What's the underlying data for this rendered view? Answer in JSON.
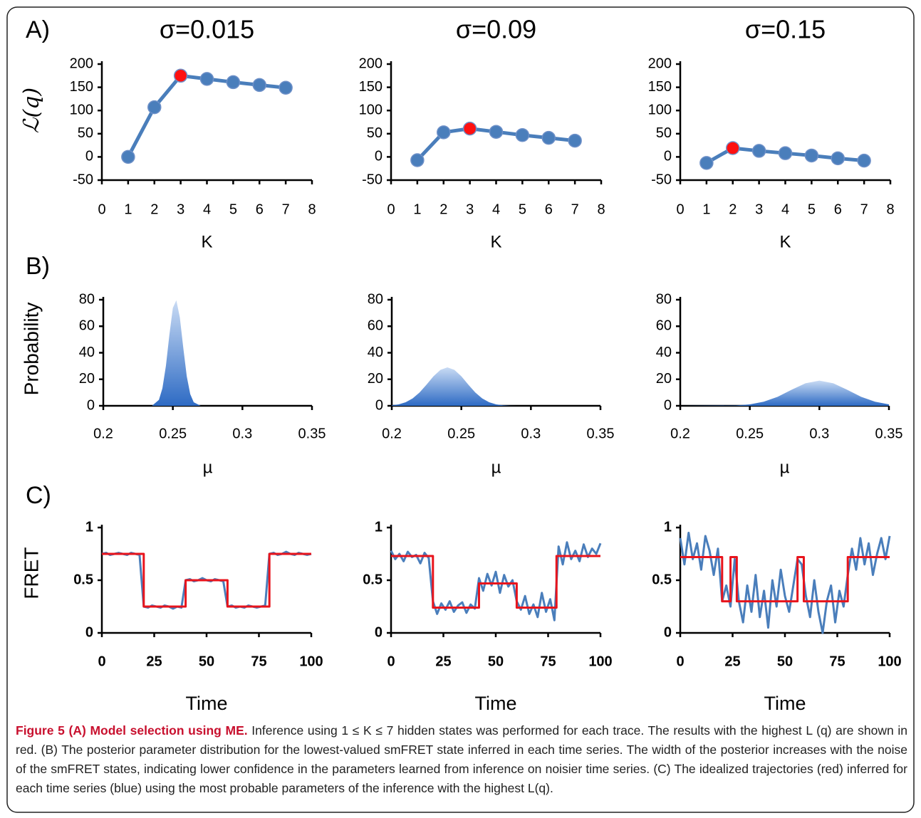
{
  "panel_labels": [
    "A)",
    "B)",
    "C)"
  ],
  "caption": {
    "bold": "Figure 5 (A) Model selection using ME.",
    "text": "Inference using 1 ≤ K ≤ 7 hidden states was performed for each trace. The results with the highest L (q) are shown in red. (B) The posterior parameter distribution for the lowest-valued smFRET state inferred in each time series. The width of the posterior increases with the noise of the smFRET states, indicating lower confidence in the parameters learned from inference on noisier time series. (C) The idealized trajectories (red) inferred for each time series (blue) using the most probable parameters of the inference with the highest L(q)."
  },
  "chart_data": [
    {
      "type": "line",
      "title": "σ=0.015",
      "ylabel": "ℒ(q)",
      "xlabel": "K",
      "markers": true,
      "color": "#4a7ebb",
      "x": [
        1,
        2,
        3,
        4,
        5,
        6,
        7
      ],
      "values": [
        0,
        107,
        175,
        168,
        161,
        155,
        149
      ],
      "point_colors": [
        "#4a7ebb",
        "#4a7ebb",
        "#ff1010",
        "#4a7ebb",
        "#4a7ebb",
        "#4a7ebb",
        "#4a7ebb"
      ],
      "xlim": [
        0,
        8
      ],
      "xticks": [
        0,
        1,
        2,
        3,
        4,
        5,
        6,
        7,
        8
      ],
      "ylim": [
        -50,
        200
      ],
      "yticks": [
        -50,
        0,
        50,
        100,
        150,
        200
      ]
    },
    {
      "type": "line",
      "title": "σ=0.09",
      "xlabel": "K",
      "markers": true,
      "color": "#4a7ebb",
      "x": [
        1,
        2,
        3,
        4,
        5,
        6,
        7
      ],
      "values": [
        -7,
        53,
        61,
        54,
        47,
        41,
        35
      ],
      "point_colors": [
        "#4a7ebb",
        "#4a7ebb",
        "#ff1010",
        "#4a7ebb",
        "#4a7ebb",
        "#4a7ebb",
        "#4a7ebb"
      ],
      "xlim": [
        0,
        8
      ],
      "xticks": [
        0,
        1,
        2,
        3,
        4,
        5,
        6,
        7,
        8
      ],
      "ylim": [
        -50,
        200
      ],
      "yticks": [
        -50,
        0,
        50,
        100,
        150,
        200
      ]
    },
    {
      "type": "line",
      "title": "σ=0.15",
      "xlabel": "K",
      "markers": true,
      "color": "#4a7ebb",
      "x": [
        1,
        2,
        3,
        4,
        5,
        6,
        7
      ],
      "values": [
        -13,
        19,
        13,
        8,
        3,
        -3,
        -8
      ],
      "point_colors": [
        "#4a7ebb",
        "#ff1010",
        "#4a7ebb",
        "#4a7ebb",
        "#4a7ebb",
        "#4a7ebb",
        "#4a7ebb"
      ],
      "xlim": [
        0,
        8
      ],
      "xticks": [
        0,
        1,
        2,
        3,
        4,
        5,
        6,
        7,
        8
      ],
      "ylim": [
        -50,
        200
      ],
      "yticks": [
        -50,
        0,
        50,
        100,
        150,
        200
      ]
    },
    {
      "type": "area",
      "ylabel": "Probability",
      "xlabel": "µ",
      "color": "#2e6bc4",
      "x": [
        0.2,
        0.235,
        0.24,
        0.2425,
        0.245,
        0.2475,
        0.25,
        0.2525,
        0.255,
        0.2575,
        0.26,
        0.2625,
        0.265,
        0.27,
        0.35
      ],
      "values": [
        0,
        0,
        4.5,
        13.2,
        30,
        53.4,
        73.8,
        79.6,
        66.8,
        43.7,
        22.2,
        8.8,
        2.7,
        0,
        0
      ],
      "xlim": [
        0.2,
        0.35
      ],
      "xticks": [
        0.2,
        0.25,
        0.3,
        0.35
      ],
      "ylim": [
        0,
        80
      ],
      "yticks": [
        0,
        20,
        40,
        60,
        80
      ]
    },
    {
      "type": "area",
      "xlabel": "µ",
      "color": "#2e6bc4",
      "x": [
        0.2,
        0.205,
        0.21,
        0.215,
        0.22,
        0.225,
        0.23,
        0.235,
        0.24,
        0.245,
        0.25,
        0.255,
        0.26,
        0.265,
        0.27,
        0.275,
        0.28,
        0.285,
        0.29,
        0.35
      ],
      "values": [
        0.4,
        1.1,
        2.7,
        5.6,
        10.1,
        16,
        22.3,
        27.1,
        29,
        27.1,
        22.3,
        16,
        10.1,
        5.6,
        2.7,
        1.1,
        0.4,
        0.1,
        0,
        0
      ],
      "xlim": [
        0.2,
        0.35
      ],
      "xticks": [
        0.2,
        0.25,
        0.3,
        0.35
      ],
      "ylim": [
        0,
        80
      ],
      "yticks": [
        0,
        20,
        40,
        60,
        80
      ]
    },
    {
      "type": "area",
      "xlabel": "µ",
      "color": "#2e6bc4",
      "x": [
        0.2,
        0.24,
        0.25,
        0.26,
        0.27,
        0.28,
        0.29,
        0.3,
        0.31,
        0.32,
        0.33,
        0.34,
        0.35
      ],
      "values": [
        0,
        0.3,
        1.1,
        3.1,
        6.8,
        12.1,
        17,
        19,
        17,
        12.1,
        6.8,
        3.1,
        1.1
      ],
      "xlim": [
        0.2,
        0.35
      ],
      "xticks": [
        0.2,
        0.25,
        0.3,
        0.35
      ],
      "ylim": [
        0,
        80
      ],
      "yticks": [
        0,
        20,
        40,
        60,
        80
      ]
    },
    {
      "type": "line",
      "ylabel": "FRET",
      "xlabel": "Time",
      "series": [
        {
          "color": "#4a7ebb",
          "x": [
            0,
            2,
            4,
            6,
            8,
            10,
            12,
            14,
            16,
            18,
            20,
            22,
            24,
            26,
            28,
            30,
            32,
            34,
            36,
            38,
            40,
            42,
            44,
            46,
            48,
            50,
            52,
            54,
            56,
            58,
            60,
            62,
            64,
            66,
            68,
            70,
            72,
            74,
            76,
            78,
            80,
            82,
            84,
            86,
            88,
            90,
            92,
            94,
            96,
            98,
            100
          ],
          "values": [
            0.75,
            0.76,
            0.74,
            0.75,
            0.76,
            0.75,
            0.74,
            0.76,
            0.75,
            0.74,
            0.25,
            0.24,
            0.26,
            0.25,
            0.24,
            0.26,
            0.25,
            0.23,
            0.25,
            0.24,
            0.5,
            0.51,
            0.49,
            0.5,
            0.52,
            0.5,
            0.49,
            0.51,
            0.5,
            0.49,
            0.25,
            0.26,
            0.24,
            0.25,
            0.24,
            0.26,
            0.25,
            0.24,
            0.25,
            0.26,
            0.75,
            0.76,
            0.74,
            0.75,
            0.77,
            0.75,
            0.74,
            0.76,
            0.75,
            0.74,
            0.75
          ]
        },
        {
          "color": "#e8141c",
          "x": [
            0,
            20,
            20,
            40,
            40,
            60,
            60,
            80,
            80,
            100
          ],
          "values": [
            0.75,
            0.75,
            0.25,
            0.25,
            0.5,
            0.5,
            0.25,
            0.25,
            0.75,
            0.75
          ]
        }
      ],
      "xlim": [
        0,
        100
      ],
      "xticks": [
        0,
        25,
        50,
        75,
        100
      ],
      "ylim": [
        0,
        1
      ],
      "yticks": [
        0,
        0.5,
        1
      ]
    },
    {
      "type": "line",
      "xlabel": "Time",
      "series": [
        {
          "color": "#4a7ebb",
          "x": [
            0,
            2,
            4,
            6,
            8,
            10,
            12,
            14,
            16,
            18,
            20,
            22,
            24,
            26,
            28,
            30,
            32,
            34,
            36,
            38,
            40,
            42,
            44,
            46,
            48,
            50,
            52,
            54,
            56,
            58,
            60,
            62,
            64,
            66,
            68,
            70,
            72,
            74,
            76,
            78,
            80,
            82,
            84,
            86,
            88,
            90,
            92,
            94,
            96,
            98,
            100
          ],
          "values": [
            0.78,
            0.7,
            0.75,
            0.68,
            0.77,
            0.72,
            0.74,
            0.66,
            0.76,
            0.71,
            0.3,
            0.18,
            0.28,
            0.22,
            0.3,
            0.2,
            0.26,
            0.29,
            0.19,
            0.27,
            0.23,
            0.52,
            0.4,
            0.56,
            0.45,
            0.58,
            0.38,
            0.55,
            0.44,
            0.5,
            0.3,
            0.22,
            0.35,
            0.18,
            0.27,
            0.15,
            0.38,
            0.2,
            0.32,
            0.12,
            0.82,
            0.65,
            0.86,
            0.7,
            0.78,
            0.68,
            0.84,
            0.72,
            0.8,
            0.75,
            0.85
          ]
        },
        {
          "color": "#e8141c",
          "x": [
            0,
            20,
            20,
            42,
            42,
            60,
            60,
            79,
            79,
            100
          ],
          "values": [
            0.73,
            0.73,
            0.24,
            0.24,
            0.47,
            0.47,
            0.24,
            0.24,
            0.73,
            0.73
          ]
        }
      ],
      "xlim": [
        0,
        100
      ],
      "xticks": [
        0,
        25,
        50,
        75,
        100
      ],
      "ylim": [
        0,
        1
      ],
      "yticks": [
        0,
        0.5,
        1
      ]
    },
    {
      "type": "line",
      "xlabel": "Time",
      "series": [
        {
          "color": "#4a7ebb",
          "x": [
            0,
            2,
            4,
            6,
            8,
            10,
            12,
            14,
            16,
            18,
            20,
            22,
            24,
            26,
            28,
            30,
            32,
            34,
            36,
            38,
            40,
            42,
            44,
            46,
            48,
            50,
            52,
            54,
            56,
            58,
            60,
            62,
            64,
            66,
            68,
            70,
            72,
            74,
            76,
            78,
            80,
            82,
            84,
            86,
            88,
            90,
            92,
            94,
            96,
            98,
            100
          ],
          "values": [
            0.9,
            0.65,
            0.95,
            0.7,
            0.85,
            0.6,
            0.92,
            0.78,
            0.55,
            0.8,
            0.3,
            0.45,
            0.25,
            0.7,
            0.3,
            0.1,
            0.45,
            0.2,
            0.55,
            0.15,
            0.4,
            0.05,
            0.5,
            0.25,
            0.6,
            0.35,
            0.2,
            0.45,
            0.7,
            0.65,
            0.35,
            0.15,
            0.5,
            0.2,
            0,
            0.3,
            0.45,
            0.1,
            0.4,
            0.25,
            0.55,
            0.8,
            0.6,
            0.9,
            0.65,
            0.85,
            0.55,
            0.75,
            0.9,
            0.7,
            0.92
          ]
        },
        {
          "color": "#e8141c",
          "x": [
            0,
            20,
            20,
            24,
            24,
            27,
            27,
            56,
            56,
            59,
            59,
            80,
            80,
            100
          ],
          "values": [
            0.72,
            0.72,
            0.3,
            0.3,
            0.72,
            0.72,
            0.3,
            0.3,
            0.72,
            0.72,
            0.3,
            0.3,
            0.72,
            0.72
          ]
        }
      ],
      "xlim": [
        0,
        100
      ],
      "xticks": [
        0,
        25,
        50,
        75,
        100
      ],
      "ylim": [
        0,
        1
      ],
      "yticks": [
        0,
        0.5,
        1
      ]
    }
  ]
}
